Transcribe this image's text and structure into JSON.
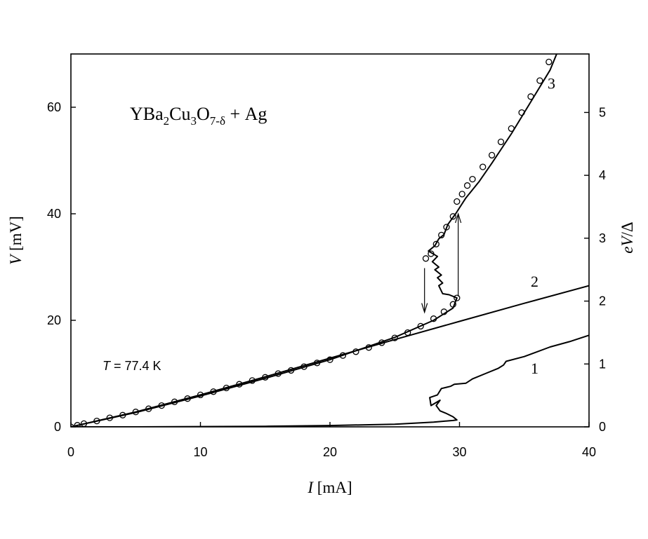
{
  "chart_data": {
    "type": "line",
    "title": "",
    "annotation_formula": {
      "base": "YBa",
      "s1": "2",
      "b2": "Cu",
      "s2": "3",
      "b3": "O",
      "s3": "7-δ",
      "b4": " + Ag"
    },
    "annotation_temperature": {
      "symbol": "T",
      "text": " = 77.4 K"
    },
    "xlabel": {
      "symbol": "I",
      "unit": " [mA]"
    },
    "ylabel": {
      "symbol": "V",
      "unit": " [mV]"
    },
    "y2label": {
      "symbol": "eV",
      "rest": "/Δ"
    },
    "xlim": [
      0,
      40
    ],
    "ylim": [
      0,
      70
    ],
    "y2lim": [
      0,
      5.93
    ],
    "xticks": [
      0,
      10,
      20,
      30,
      40
    ],
    "yticks": [
      0,
      20,
      40,
      60
    ],
    "y2ticks": [
      0,
      1,
      2,
      3,
      4,
      5
    ],
    "series": [
      {
        "name": "1",
        "style": "line",
        "points": [
          [
            0,
            0
          ],
          [
            5,
            0
          ],
          [
            10,
            0.05
          ],
          [
            15,
            0.1
          ],
          [
            20,
            0.25
          ],
          [
            25,
            0.5
          ],
          [
            28,
            0.9
          ],
          [
            29.5,
            1.2
          ],
          [
            29.8,
            1.3
          ],
          [
            29.5,
            1.9
          ],
          [
            29,
            2.5
          ],
          [
            28.5,
            3
          ],
          [
            28.2,
            4
          ],
          [
            28.5,
            5
          ],
          [
            27.8,
            4
          ],
          [
            27.7,
            5.5
          ],
          [
            28.3,
            6
          ],
          [
            28.6,
            7.2
          ],
          [
            29.3,
            7.6
          ],
          [
            29.6,
            8
          ],
          [
            30.5,
            8.2
          ],
          [
            31,
            9
          ],
          [
            32,
            10
          ],
          [
            33,
            11
          ],
          [
            33.4,
            11.6
          ],
          [
            33.6,
            12.3
          ],
          [
            35,
            13.2
          ],
          [
            37,
            15
          ],
          [
            38.5,
            16
          ],
          [
            40,
            17.2
          ]
        ]
      },
      {
        "name": "2",
        "style": "line",
        "points": [
          [
            0,
            0
          ],
          [
            5,
            2.8
          ],
          [
            10,
            6
          ],
          [
            15,
            9.4
          ],
          [
            20,
            12.9
          ],
          [
            25,
            16.4
          ],
          [
            30,
            19.8
          ],
          [
            35,
            23.2
          ],
          [
            40,
            26.5
          ]
        ]
      },
      {
        "name": "3",
        "style": "line",
        "points": [
          [
            0,
            0
          ],
          [
            5,
            2.7
          ],
          [
            10,
            5.8
          ],
          [
            15,
            9.1
          ],
          [
            20,
            12.6
          ],
          [
            25,
            16.8
          ],
          [
            28,
            20
          ],
          [
            29.5,
            22.3
          ],
          [
            29.8,
            24.2
          ],
          [
            29.2,
            24.8
          ],
          [
            28.7,
            25
          ],
          [
            28.4,
            26.5
          ],
          [
            28.7,
            27
          ],
          [
            28.3,
            28
          ],
          [
            28.6,
            28.5
          ],
          [
            28.1,
            29.5
          ],
          [
            28.4,
            30
          ],
          [
            27.9,
            31
          ],
          [
            28.3,
            32
          ],
          [
            27.6,
            33
          ],
          [
            28.1,
            34
          ],
          [
            28.4,
            35.3
          ],
          [
            28.8,
            36.1
          ],
          [
            29.1,
            38
          ],
          [
            29.7,
            40
          ],
          [
            30.5,
            43
          ],
          [
            31.5,
            46
          ],
          [
            32.5,
            49.5
          ],
          [
            34,
            55
          ],
          [
            35.5,
            61
          ],
          [
            37,
            67
          ],
          [
            37.5,
            70
          ]
        ]
      },
      {
        "name": "3",
        "style": "markers",
        "points": [
          [
            0,
            0
          ],
          [
            0.5,
            0.3
          ],
          [
            1,
            0.6
          ],
          [
            2,
            1.1
          ],
          [
            3,
            1.7
          ],
          [
            4,
            2.2
          ],
          [
            5,
            2.8
          ],
          [
            6,
            3.4
          ],
          [
            7,
            4
          ],
          [
            8,
            4.7
          ],
          [
            9,
            5.3
          ],
          [
            10,
            6
          ],
          [
            11,
            6.6
          ],
          [
            12,
            7.3
          ],
          [
            13,
            8
          ],
          [
            14,
            8.7
          ],
          [
            15,
            9.3
          ],
          [
            16,
            10
          ],
          [
            17,
            10.6
          ],
          [
            18,
            11.3
          ],
          [
            19,
            12
          ],
          [
            20,
            12.6
          ],
          [
            21,
            13.4
          ],
          [
            22,
            14.1
          ],
          [
            23,
            14.9
          ],
          [
            24,
            15.8
          ],
          [
            25,
            16.7
          ],
          [
            26,
            17.7
          ],
          [
            27,
            18.9
          ],
          [
            28,
            20.3
          ],
          [
            28.8,
            21.6
          ],
          [
            29.5,
            23
          ],
          [
            29.8,
            24.2
          ],
          [
            27.4,
            31.6
          ],
          [
            27.8,
            32.5
          ],
          [
            28.2,
            34.3
          ],
          [
            28.6,
            36
          ],
          [
            29,
            37.5
          ],
          [
            29.5,
            39.5
          ],
          [
            29.8,
            42.3
          ],
          [
            30.2,
            43.7
          ],
          [
            30.6,
            45.3
          ],
          [
            31,
            46.5
          ],
          [
            31.8,
            48.8
          ],
          [
            32.5,
            51
          ],
          [
            33.2,
            53.5
          ],
          [
            34,
            56
          ],
          [
            34.8,
            59
          ],
          [
            35.5,
            62
          ],
          [
            36.2,
            65
          ],
          [
            36.9,
            68.5
          ]
        ]
      }
    ],
    "arrows": [
      {
        "direction": "down",
        "x": 27.3,
        "from": 29.8,
        "to": 21.5
      },
      {
        "direction": "up",
        "x": 29.9,
        "from": 24.5,
        "to": 40
      }
    ],
    "curve_labels": [
      {
        "text": "1",
        "x": 35.5,
        "y": 10
      },
      {
        "text": "2",
        "x": 35.5,
        "y": 26.3
      },
      {
        "text": "3",
        "x": 36.8,
        "y": 63.5
      }
    ]
  }
}
